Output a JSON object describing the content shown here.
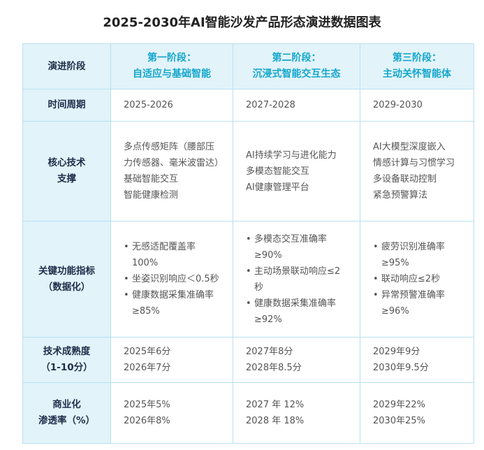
{
  "title": "2025-2030年AI智能沙发产品形态演进数据图表",
  "table": {
    "header": {
      "label": [
        "演进阶段"
      ],
      "stages": [
        [
          "第一阶段：",
          "自适应与基础智能"
        ],
        [
          "第二阶段：",
          "沉浸式智能交互生态"
        ],
        [
          "第三阶段：",
          "主动关怀智能体"
        ]
      ]
    },
    "rows": [
      {
        "label": [
          "时间周期"
        ],
        "cells": [
          [
            "2025-2026"
          ],
          [
            "2027-2028"
          ],
          [
            "2029-2030"
          ]
        ]
      },
      {
        "label": [
          "核心技术",
          "支撑"
        ],
        "cells": [
          [
            "多点传感矩阵（腰部压力传感器、毫米波雷达）",
            "基础智能交互",
            "智能健康检测"
          ],
          [
            "AI持续学习与进化能力",
            "多模态智能交互",
            "AI健康管理平台"
          ],
          [
            "AI大模型深度嵌入",
            "情感计算与习惯学习",
            "多设备联动控制",
            "紧急预警算法"
          ]
        ]
      },
      {
        "label": [
          "关键功能指标",
          "（数据化）"
        ],
        "bulleted": true,
        "cells": [
          [
            "无感适配覆盖率100%",
            "坐姿识别响应＜0.5秒",
            "健康数据采集准确率≥85%"
          ],
          [
            "多模态交互准确率≥90%",
            "主动场景联动响应≤2秒",
            "健康数据采集准确率≥92%"
          ],
          [
            "疲劳识别准确率≥95%",
            "联动响应≤2秒",
            "异常预警准确率≥96%"
          ]
        ]
      },
      {
        "label": [
          "技术成熟度",
          "（1-10分）"
        ],
        "cells": [
          [
            "2025年6分",
            "2026年7分"
          ],
          [
            "2027年8分",
            "2028年8.5分"
          ],
          [
            "2029年9分",
            "2030年9.5分"
          ]
        ]
      },
      {
        "label": [
          "商业化",
          "渗透率（%）"
        ],
        "cells": [
          [
            "2025年5%",
            "2026年8%"
          ],
          [
            "2027 年 12%",
            "2028 年 18%"
          ],
          [
            "2029年22%",
            "2030年25%"
          ]
        ]
      }
    ]
  }
}
